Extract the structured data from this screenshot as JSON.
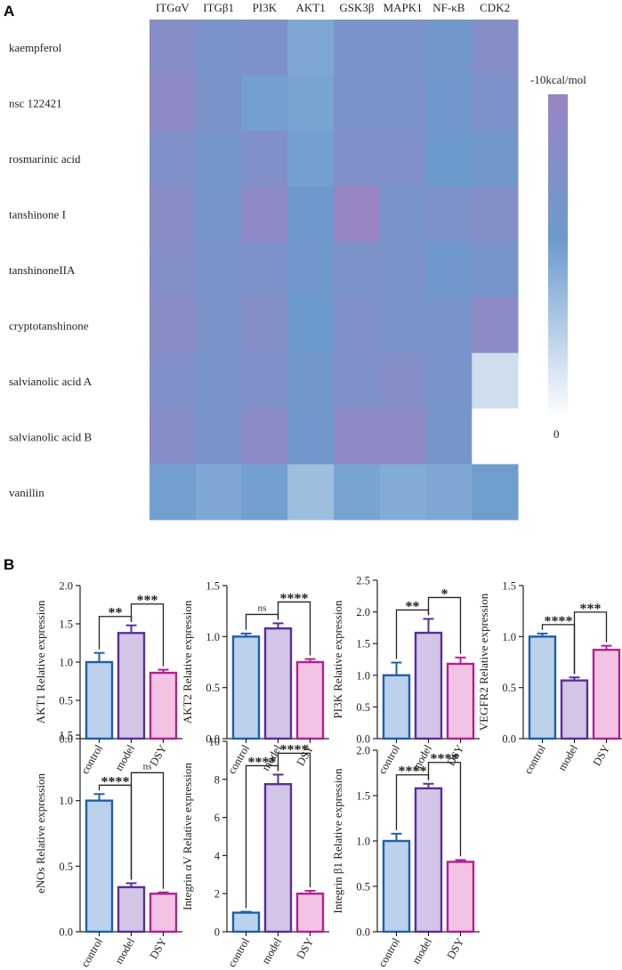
{
  "panel_labels": {
    "a": "A",
    "b": "B"
  },
  "chart_data": [
    {
      "type": "heatmap",
      "title": "",
      "columns": [
        "ITGαV",
        "ITGβ1",
        "PI3K",
        "AKT1",
        "GSK3β",
        "MAPK1",
        "NF-κB",
        "CDK2"
      ],
      "rows": [
        "kaempferol",
        "nsc 122421",
        "rosmarinic acid",
        "tanshinone I",
        "tanshinoneIIA",
        "cryptotanshinone",
        "salvianolic acid A",
        "salvianolic acid B",
        "vanillin"
      ],
      "values": [
        [
          -8.0,
          -6.8,
          -7.2,
          -4.8,
          -7.1,
          -7.0,
          -6.2,
          -8.0
        ],
        [
          -8.8,
          -7.0,
          -5.2,
          -5.0,
          -7.0,
          -7.0,
          -6.0,
          -7.2
        ],
        [
          -7.4,
          -6.4,
          -7.6,
          -5.2,
          -7.4,
          -7.4,
          -5.6,
          -6.2
        ],
        [
          -8.2,
          -6.6,
          -8.8,
          -5.8,
          -9.6,
          -6.8,
          -7.2,
          -7.8
        ],
        [
          -7.8,
          -6.8,
          -7.2,
          -6.0,
          -7.2,
          -7.0,
          -6.0,
          -6.6
        ],
        [
          -8.4,
          -7.0,
          -7.8,
          -5.6,
          -7.6,
          -6.8,
          -6.8,
          -8.6
        ],
        [
          -7.6,
          -6.8,
          -7.4,
          -6.2,
          -7.4,
          -8.0,
          -6.8,
          -1.8
        ],
        [
          -8.0,
          -6.8,
          -8.6,
          -6.0,
          -8.8,
          -8.8,
          -6.6,
          0
        ],
        [
          -5.2,
          -4.8,
          -5.2,
          -3.6,
          -5.0,
          -4.6,
          -4.8,
          -5.4
        ]
      ],
      "colorbar": {
        "max_label": "-10kcal/mol",
        "min_label": "0",
        "range": [
          -10,
          0
        ],
        "colors": [
          "#9b84c2",
          "#6b9bcd",
          "#ffffff"
        ]
      }
    },
    {
      "type": "bar",
      "ylabel": "AKT1 Relative expression",
      "categories": [
        "control",
        "model",
        "DSY"
      ],
      "values": [
        1.0,
        1.38,
        0.86
      ],
      "errors": [
        0.12,
        0.1,
        0.04
      ],
      "ylim": [
        0,
        2.0
      ],
      "yticks": [
        "0.0",
        "0.5",
        "1.0",
        "1.5",
        "2.0"
      ],
      "comparisons": [
        {
          "from": 0,
          "to": 1,
          "label": "**"
        },
        {
          "from": 1,
          "to": 2,
          "label": "***"
        }
      ]
    },
    {
      "type": "bar",
      "ylabel": "AKT2 Relative expression",
      "categories": [
        "control",
        "model",
        "DSY"
      ],
      "values": [
        1.0,
        1.08,
        0.75
      ],
      "errors": [
        0.03,
        0.05,
        0.03
      ],
      "ylim": [
        0,
        1.5
      ],
      "yticks": [
        "0.0",
        "0.5",
        "1.0",
        "1.5"
      ],
      "comparisons": [
        {
          "from": 0,
          "to": 1,
          "label": "ns"
        },
        {
          "from": 1,
          "to": 2,
          "label": "****"
        }
      ]
    },
    {
      "type": "bar",
      "ylabel": "PI3K Relative expression",
      "categories": [
        "control",
        "model",
        "DSY"
      ],
      "values": [
        1.0,
        1.67,
        1.18
      ],
      "errors": [
        0.2,
        0.22,
        0.1
      ],
      "ylim": [
        0,
        2.5
      ],
      "yticks": [
        "0.0",
        "0.5",
        "1.0",
        "1.5",
        "2.0",
        "2.5"
      ],
      "comparisons": [
        {
          "from": 0,
          "to": 1,
          "label": "**"
        },
        {
          "from": 1,
          "to": 2,
          "label": "*"
        }
      ]
    },
    {
      "type": "bar",
      "ylabel": "VEGFR2 Relative expression",
      "categories": [
        "control",
        "model",
        "DSY"
      ],
      "values": [
        1.0,
        0.57,
        0.87
      ],
      "errors": [
        0.03,
        0.03,
        0.04
      ],
      "ylim": [
        0,
        1.5
      ],
      "yticks": [
        "0.0",
        "0.5",
        "1.0",
        "1.5"
      ],
      "comparisons": [
        {
          "from": 0,
          "to": 1,
          "label": "****"
        },
        {
          "from": 1,
          "to": 2,
          "label": "***"
        }
      ]
    },
    {
      "type": "bar",
      "ylabel": "eNOs Relative expression",
      "categories": [
        "control",
        "model",
        "DSY"
      ],
      "values": [
        1.0,
        0.34,
        0.29
      ],
      "errors": [
        0.05,
        0.03,
        0.01
      ],
      "ylim": [
        0,
        1.5
      ],
      "yticks": [
        "0.0",
        "0.5",
        "1.0",
        "1.5"
      ],
      "comparisons": [
        {
          "from": 0,
          "to": 1,
          "label": "****"
        },
        {
          "from": 1,
          "to": 2,
          "label": "ns"
        }
      ]
    },
    {
      "type": "bar",
      "ylabel": "Integrin αV Relative expression",
      "categories": [
        "control",
        "model",
        "DSY"
      ],
      "values": [
        1.0,
        7.75,
        2.0
      ],
      "errors": [
        0.05,
        0.5,
        0.15
      ],
      "ylim": [
        0,
        10
      ],
      "yticks": [
        "0",
        "2",
        "4",
        "6",
        "8",
        "10"
      ],
      "comparisons": [
        {
          "from": 0,
          "to": 1,
          "label": "****"
        },
        {
          "from": 1,
          "to": 2,
          "label": "****"
        }
      ]
    },
    {
      "type": "bar",
      "ylabel": "Integrin β1 Relative expression",
      "categories": [
        "control",
        "model",
        "DSY"
      ],
      "values": [
        1.0,
        1.58,
        0.77
      ],
      "errors": [
        0.08,
        0.05,
        0.02
      ],
      "ylim": [
        0,
        2.0
      ],
      "yticks": [
        "0.0",
        "0.5",
        "1.0",
        "1.5",
        "2.0"
      ],
      "comparisons": [
        {
          "from": 0,
          "to": 1,
          "label": "****"
        },
        {
          "from": 1,
          "to": 2,
          "label": "****"
        }
      ]
    }
  ],
  "bar_colors": [
    {
      "fill": "#bcd1ec",
      "stroke": "#1f5fa8"
    },
    {
      "fill": "#d2c5e6",
      "stroke": "#5b2d9a"
    },
    {
      "fill": "#f3c3e3",
      "stroke": "#b0228f"
    }
  ]
}
